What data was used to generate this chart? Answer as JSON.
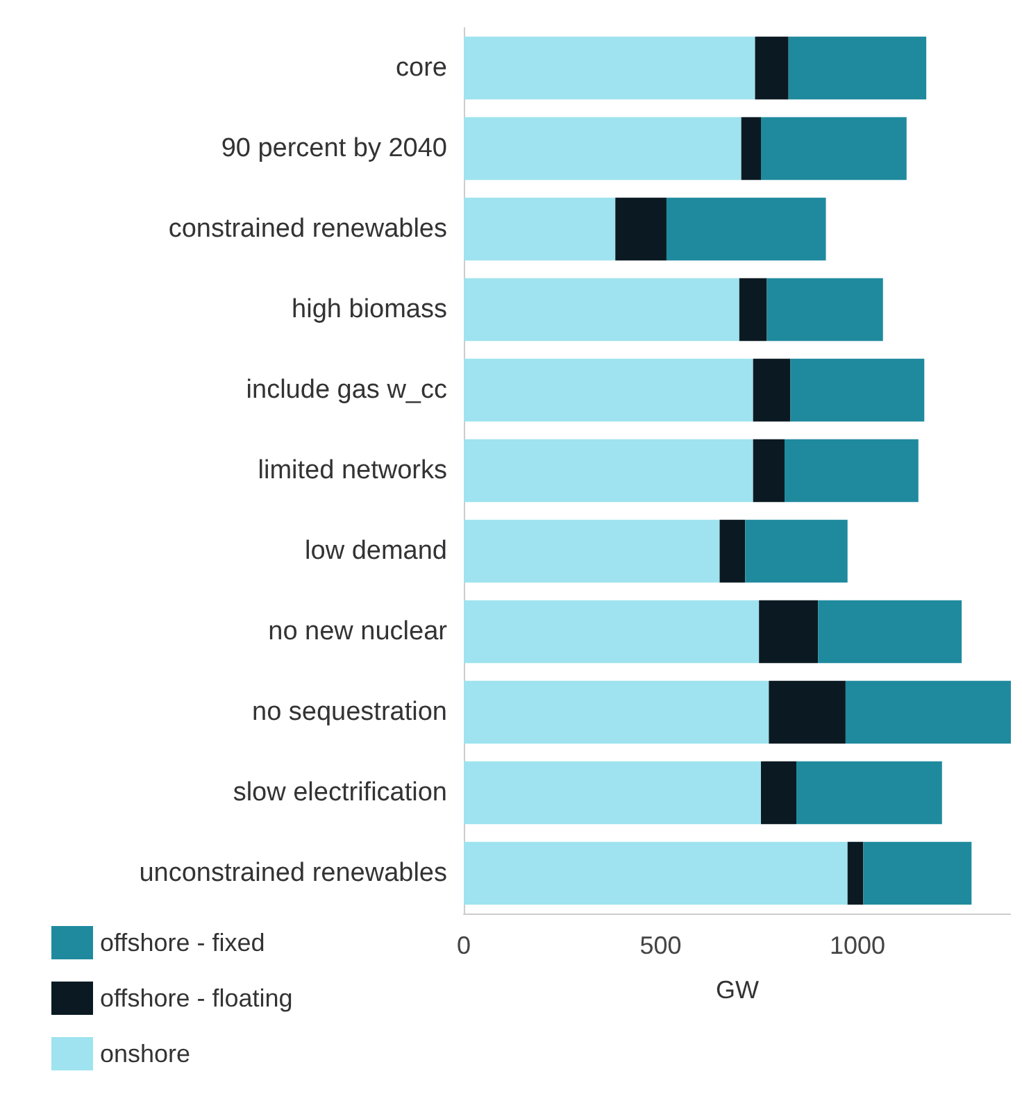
{
  "chart_data": {
    "type": "bar",
    "orientation": "horizontal",
    "stacked": true,
    "xlabel": "GW",
    "categories": [
      "core",
      "90 percent by 2040",
      "constrained renewables",
      "high biomass",
      "include gas w_cc",
      "limited networks",
      "low demand",
      "no new nuclear",
      "no sequestration",
      "slow electrification",
      "unconstrained renewables"
    ],
    "series": [
      {
        "name": "onshore",
        "color": "#9ee3ef",
        "values": [
          740,
          705,
          385,
          700,
          735,
          735,
          650,
          750,
          775,
          755,
          975
        ]
      },
      {
        "name": "offshore - floating",
        "color": "#0b1a22",
        "values": [
          85,
          50,
          130,
          70,
          95,
          80,
          65,
          150,
          195,
          90,
          40
        ]
      },
      {
        "name": "offshore - fixed",
        "color": "#1f8a9e",
        "values": [
          350,
          370,
          405,
          295,
          340,
          340,
          260,
          365,
          420,
          370,
          275
        ]
      }
    ],
    "xlim": [
      0,
      1390
    ],
    "xticks": [
      0,
      500,
      1000
    ],
    "grid": false,
    "legend": "bottom left"
  }
}
